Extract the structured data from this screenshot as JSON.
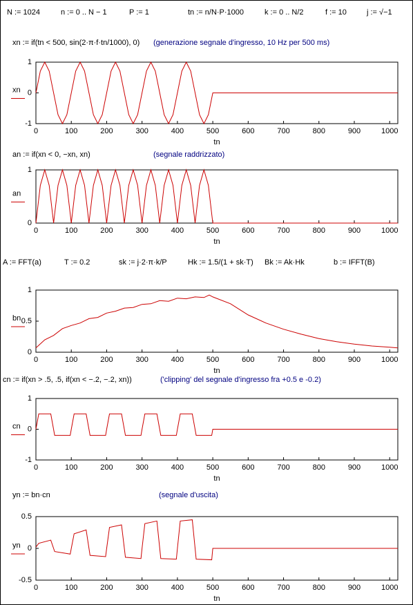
{
  "definitions": [
    "N := 1024",
    "n := 0 .. N − 1",
    "P := 1",
    "tn := n/N·P·1000",
    "k := 0 .. N/2",
    "f := 10",
    "j := √−1"
  ],
  "formula_x": "xn := if(tn < 500, sin(2·π·f·tn/1000), 0)",
  "comment_x": "(generazione segnale d'ingresso, 10 Hz per 500 ms)",
  "formula_a": "an := if(xn < 0, −xn, xn)",
  "comment_a": "(segnale raddrizzato)",
  "filter_definitions": [
    "A := FFT(a)",
    "T := 0.2",
    "sk := j·2·π·k/P",
    "Hk := 1.5/(1 + sk·T)",
    "Bk := Ak·Hk",
    "b := IFFT(B)"
  ],
  "formula_c": "cn := if(xn > .5, .5, if(xn < −.2, −.2, xn))",
  "comment_c": "('clipping' del segnale d'ingresso fra +0.5  e -0.2)",
  "formula_y": "yn := bn·cn",
  "comment_y": "(segnale d'uscita)",
  "chart_data": [
    {
      "type": "line",
      "x_label": "tn",
      "xlim": [
        0,
        1023
      ],
      "xticks": [
        0,
        100,
        200,
        300,
        400,
        500,
        600,
        700,
        800,
        900,
        1000
      ],
      "ylim": [
        -1,
        1
      ],
      "yticks": [
        -1,
        0,
        1
      ],
      "x": [
        0,
        12.5,
        25,
        37.5,
        50,
        62.5,
        75,
        87.5,
        100,
        112.5,
        125,
        137.5,
        150,
        162.5,
        175,
        187.5,
        200,
        212.5,
        225,
        237.5,
        250,
        262.5,
        275,
        287.5,
        300,
        312.5,
        325,
        337.5,
        350,
        362.5,
        375,
        387.5,
        400,
        412.5,
        425,
        437.5,
        450,
        462.5,
        475,
        487.5,
        500,
        1023
      ],
      "series": [
        {
          "name": "xn",
          "color": "#cc0000",
          "values": [
            0,
            0.71,
            1,
            0.71,
            0,
            -0.71,
            -1,
            -0.71,
            0,
            0.71,
            1,
            0.71,
            0,
            -0.71,
            -1,
            -0.71,
            0,
            0.71,
            1,
            0.71,
            0,
            -0.71,
            -1,
            -0.71,
            0,
            0.71,
            1,
            0.71,
            0,
            -0.71,
            -1,
            -0.71,
            0,
            0.71,
            1,
            0.71,
            0,
            -0.71,
            -1,
            -0.71,
            0,
            0
          ]
        }
      ]
    },
    {
      "type": "line",
      "x_label": "tn",
      "xlim": [
        0,
        1023
      ],
      "xticks": [
        0,
        100,
        200,
        300,
        400,
        500,
        600,
        700,
        800,
        900,
        1000
      ],
      "ylim": [
        0,
        1
      ],
      "yticks": [
        0,
        1
      ],
      "x": [
        0,
        12.5,
        25,
        37.5,
        50,
        62.5,
        75,
        87.5,
        100,
        112.5,
        125,
        137.5,
        150,
        162.5,
        175,
        187.5,
        200,
        212.5,
        225,
        237.5,
        250,
        262.5,
        275,
        287.5,
        300,
        312.5,
        325,
        337.5,
        350,
        362.5,
        375,
        387.5,
        400,
        412.5,
        425,
        437.5,
        450,
        462.5,
        475,
        487.5,
        500,
        1023
      ],
      "series": [
        {
          "name": "an",
          "color": "#cc0000",
          "values": [
            0,
            0.71,
            1,
            0.71,
            0,
            0.71,
            1,
            0.71,
            0,
            0.71,
            1,
            0.71,
            0,
            0.71,
            1,
            0.71,
            0,
            0.71,
            1,
            0.71,
            0,
            0.71,
            1,
            0.71,
            0,
            0.71,
            1,
            0.71,
            0,
            0.71,
            1,
            0.71,
            0,
            0.71,
            1,
            0.71,
            0,
            0.71,
            1,
            0.71,
            0,
            0
          ]
        }
      ]
    },
    {
      "type": "line",
      "x_label": "tn",
      "xlim": [
        0,
        1023
      ],
      "xticks": [
        0,
        100,
        200,
        300,
        400,
        500,
        600,
        700,
        800,
        900,
        1000
      ],
      "ylim": [
        0,
        1
      ],
      "yticks": [
        0,
        0.5,
        1
      ],
      "x": [
        0,
        25,
        50,
        75,
        100,
        125,
        150,
        175,
        200,
        225,
        250,
        275,
        300,
        325,
        350,
        375,
        400,
        425,
        450,
        475,
        490,
        500,
        550,
        600,
        650,
        700,
        750,
        800,
        850,
        900,
        950,
        1000,
        1023
      ],
      "series": [
        {
          "name": "bn",
          "color": "#cc0000",
          "values": [
            0.07,
            0.2,
            0.27,
            0.38,
            0.43,
            0.47,
            0.54,
            0.56,
            0.63,
            0.66,
            0.71,
            0.72,
            0.77,
            0.78,
            0.83,
            0.82,
            0.87,
            0.86,
            0.89,
            0.88,
            0.92,
            0.89,
            0.78,
            0.6,
            0.47,
            0.37,
            0.29,
            0.22,
            0.17,
            0.13,
            0.1,
            0.08,
            0.07
          ]
        }
      ]
    },
    {
      "type": "line",
      "x_label": "tn",
      "xlim": [
        0,
        1023
      ],
      "xticks": [
        0,
        100,
        200,
        300,
        400,
        500,
        600,
        700,
        800,
        900,
        1000
      ],
      "ylim": [
        -1,
        1
      ],
      "yticks": [
        -1,
        0,
        1
      ],
      "x": [
        0,
        8,
        42,
        53,
        97,
        100,
        108,
        142,
        153,
        197,
        200,
        208,
        242,
        253,
        297,
        300,
        308,
        342,
        353,
        397,
        400,
        408,
        442,
        453,
        497,
        500,
        1023
      ],
      "series": [
        {
          "name": "cn",
          "color": "#cc0000",
          "values": [
            0,
            0.5,
            0.5,
            -0.2,
            -0.2,
            0,
            0.5,
            0.5,
            -0.2,
            -0.2,
            0,
            0.5,
            0.5,
            -0.2,
            -0.2,
            0,
            0.5,
            0.5,
            -0.2,
            -0.2,
            0,
            0.5,
            0.5,
            -0.2,
            -0.2,
            0,
            0
          ]
        }
      ]
    },
    {
      "type": "line",
      "x_label": "tn",
      "xlim": [
        0,
        1023
      ],
      "xticks": [
        0,
        100,
        200,
        300,
        400,
        500,
        600,
        700,
        800,
        900,
        1000
      ],
      "ylim": [
        -0.5,
        0.5
      ],
      "yticks": [
        -0.5,
        0,
        0.5
      ],
      "x": [
        0,
        8,
        42,
        53,
        97,
        100,
        108,
        142,
        153,
        197,
        200,
        208,
        242,
        253,
        297,
        300,
        308,
        342,
        353,
        397,
        400,
        408,
        442,
        453,
        497,
        500,
        1023
      ],
      "series": [
        {
          "name": "yn",
          "color": "#cc0000",
          "values": [
            0.02,
            0.08,
            0.13,
            -0.05,
            -0.09,
            0,
            0.23,
            0.29,
            -0.11,
            -0.13,
            0,
            0.33,
            0.37,
            -0.14,
            -0.16,
            0,
            0.39,
            0.43,
            -0.16,
            -0.17,
            0,
            0.43,
            0.45,
            -0.17,
            -0.18,
            0,
            0
          ]
        }
      ]
    }
  ]
}
